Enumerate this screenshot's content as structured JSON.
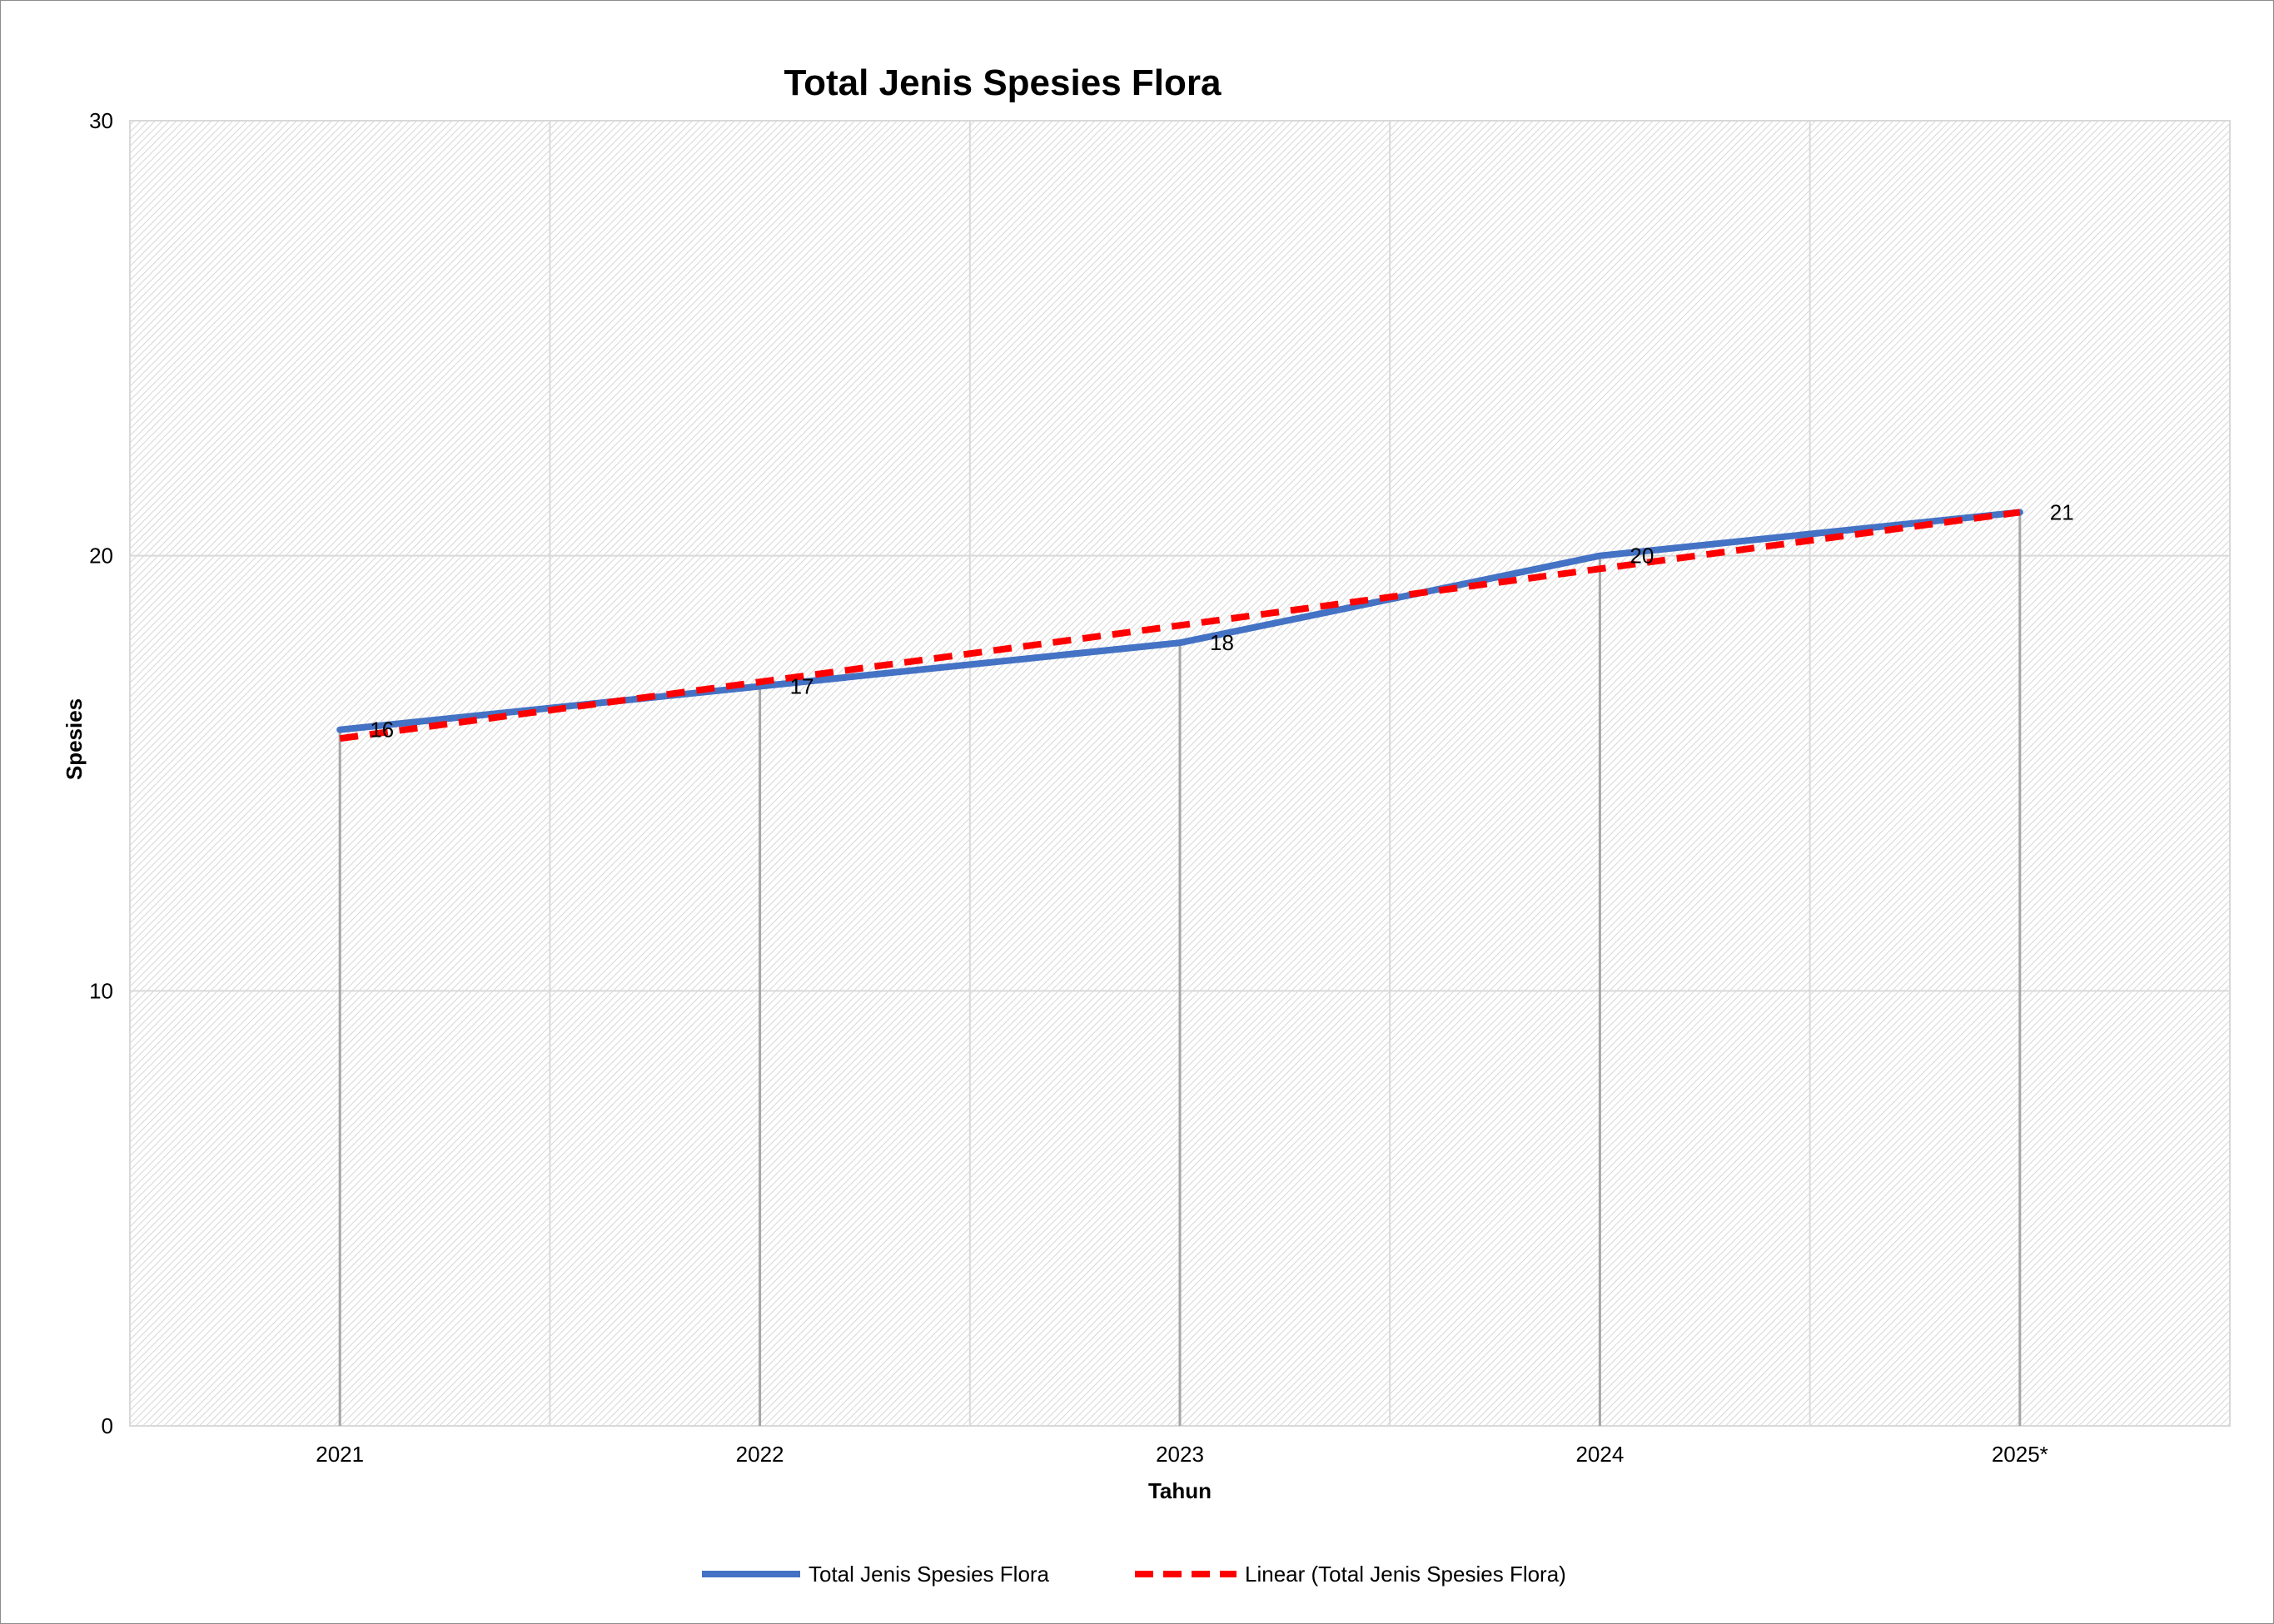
{
  "chart_data": {
    "type": "line",
    "title": "Total Jenis Spesies Flora",
    "xlabel": "Tahun",
    "ylabel": "Spesies",
    "categories": [
      "2021",
      "2022",
      "2023",
      "2024",
      "2025*"
    ],
    "series": [
      {
        "name": "Total Jenis Spesies Flora",
        "values": [
          16,
          17,
          18,
          20,
          21
        ],
        "color": "#4472c4",
        "style": "solid"
      },
      {
        "name": "Linear (Total Jenis Spesies Flora)",
        "values": [
          15.8,
          17.1,
          18.4,
          19.7,
          21.0
        ],
        "color": "#ff0000",
        "style": "dashed"
      }
    ],
    "data_labels": [
      "16",
      "17",
      "18",
      "20",
      "21"
    ],
    "ylim": [
      0,
      30
    ],
    "yticks": [
      "0",
      "10",
      "20",
      "30"
    ],
    "grid": true,
    "drop_lines": true,
    "legend_position": "bottom"
  }
}
